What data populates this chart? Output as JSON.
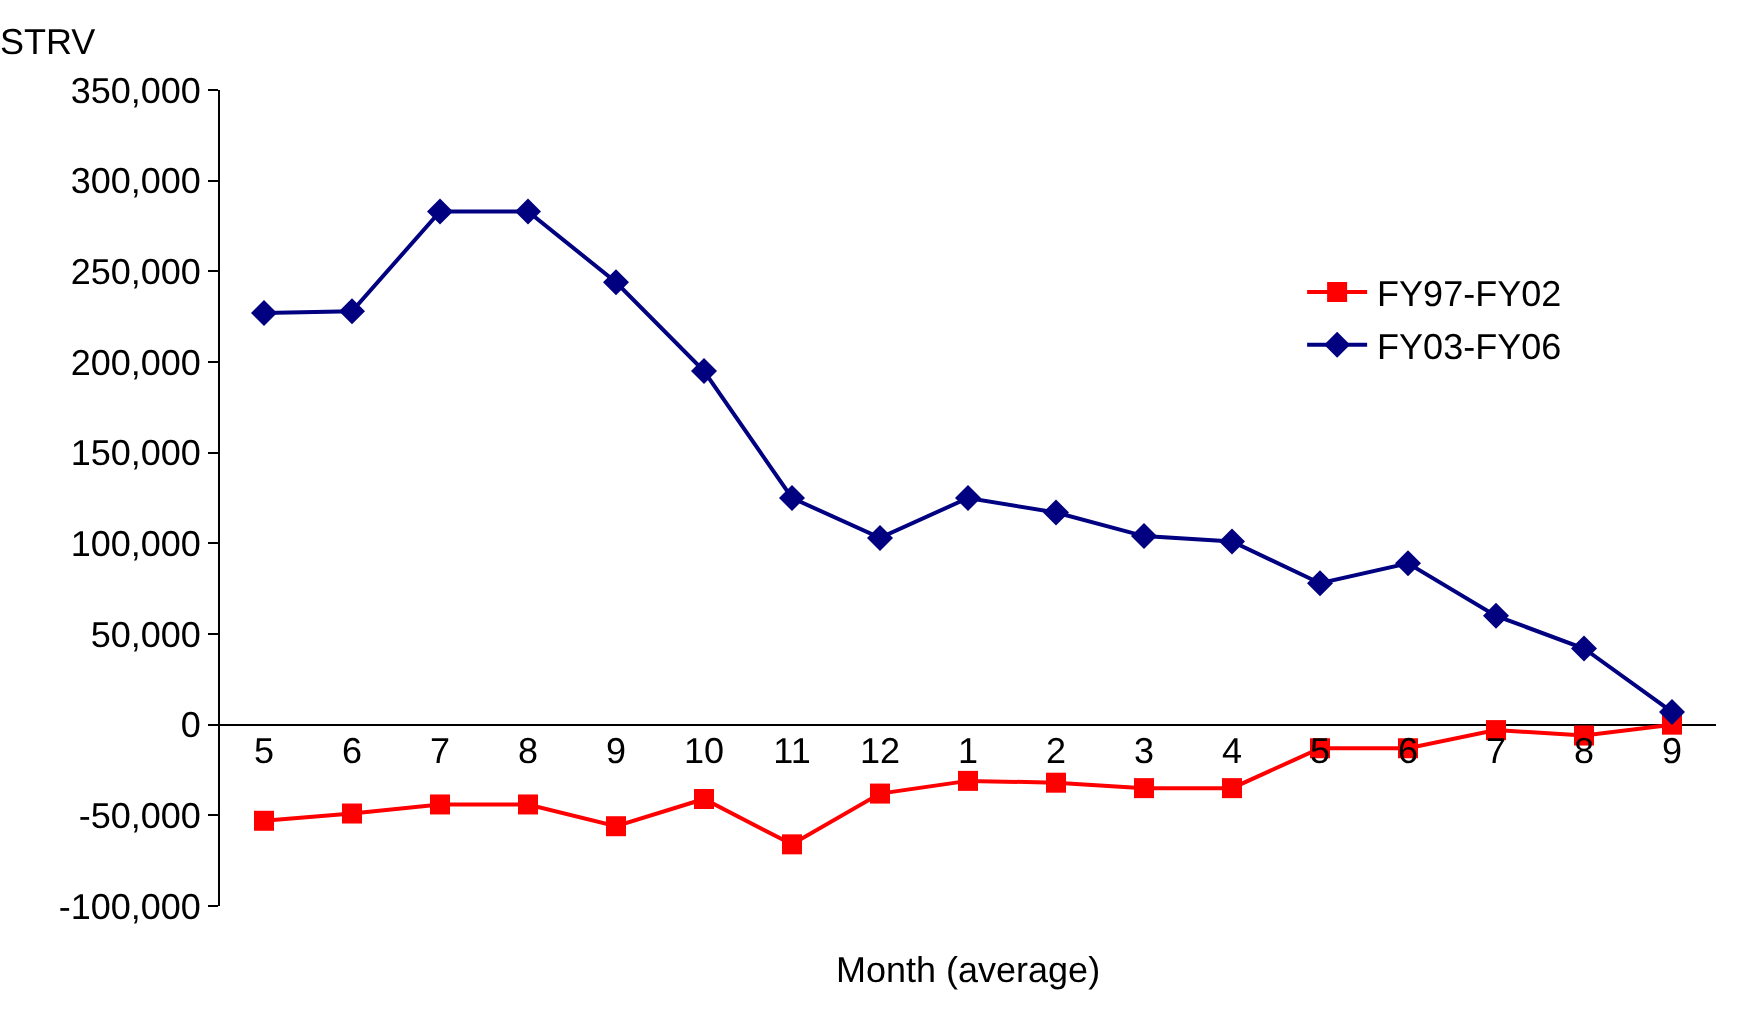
{
  "chart_data": {
    "type": "line",
    "ylabel": "STRV",
    "xlabel": "Month (average)",
    "categories": [
      "5",
      "6",
      "7",
      "8",
      "9",
      "10",
      "11",
      "12",
      "1",
      "2",
      "3",
      "4",
      "5",
      "6",
      "7",
      "8",
      "9"
    ],
    "series": [
      {
        "name": "FY97-FY02",
        "color": "#ff0000",
        "marker": "square",
        "values": [
          -53000,
          -49000,
          -44000,
          -44000,
          -56000,
          -41000,
          -66000,
          -38000,
          -31000,
          -32000,
          -35000,
          -35000,
          -13000,
          -13000,
          -3000,
          -6000,
          0
        ]
      },
      {
        "name": "FY03-FY06",
        "color": "#000080",
        "marker": "diamond",
        "values": [
          227000,
          228000,
          283000,
          283000,
          244000,
          195000,
          125000,
          103000,
          125000,
          117000,
          104000,
          101000,
          78000,
          89000,
          60000,
          42000,
          7000
        ]
      }
    ],
    "ylim": [
      -100000,
      350000
    ],
    "yticks": [
      {
        "value": -100000,
        "label": "-100,000"
      },
      {
        "value": -50000,
        "label": "-50,000"
      },
      0,
      {
        "value": 50000,
        "label": "50,000"
      },
      {
        "value": 100000,
        "label": "100,000"
      },
      {
        "value": 150000,
        "label": "150,000"
      },
      {
        "value": 200000,
        "label": "200,000"
      },
      {
        "value": 250000,
        "label": "250,000"
      },
      {
        "value": 300000,
        "label": "300,000"
      },
      {
        "value": 350000,
        "label": "350,000"
      }
    ],
    "legend": "right",
    "line_style": "solid"
  }
}
